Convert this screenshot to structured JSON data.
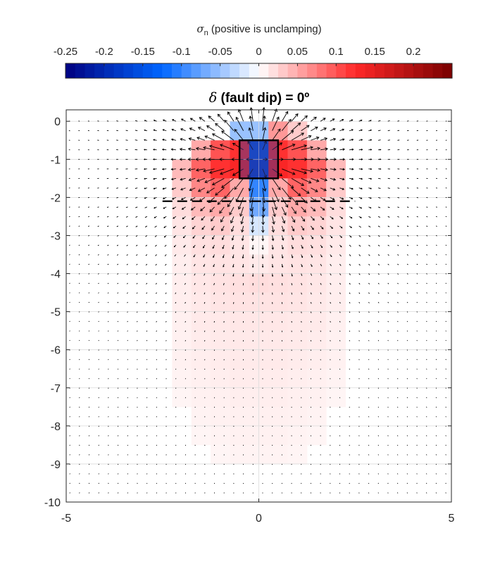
{
  "chart_data": {
    "type": "heatmap",
    "title": {
      "symbol": "δ",
      "text": " (fault dip) = 0º"
    },
    "colorbar": {
      "label_symbol": "σ",
      "label_subscript": "n",
      "label_text": " (positive is unclamping)",
      "ticks": [
        -0.25,
        -0.2,
        -0.15,
        -0.1,
        -0.05,
        0,
        0.05,
        0.1,
        0.15,
        0.2
      ],
      "tick_labels": [
        "-0.25",
        "-0.2",
        "-0.15",
        "-0.1",
        "-0.05",
        "0",
        "0.05",
        "0.1",
        "0.15",
        "0.2"
      ],
      "range": [
        -0.25,
        0.25
      ],
      "colormap": "blue-white-red diverging",
      "position": "top"
    },
    "x_axis": {
      "range": [
        -5,
        5
      ],
      "ticks": [
        -5,
        0,
        5
      ],
      "tick_labels": [
        "-5",
        "0",
        "5"
      ]
    },
    "y_axis": {
      "range": [
        -10,
        0.3
      ],
      "ticks": [
        0,
        -1,
        -2,
        -3,
        -4,
        -5,
        -6,
        -7,
        -8,
        -9,
        -10
      ],
      "tick_labels": [
        "0",
        "-1",
        "-2",
        "-3",
        "-4",
        "-5",
        "-6",
        "-7",
        "-8",
        "-9",
        "-10"
      ]
    },
    "grid": true,
    "source_body": {
      "x": [
        -0.5,
        0.5
      ],
      "y": [
        -1.5,
        -0.5
      ]
    },
    "fault_line": {
      "x": [
        -2.5,
        2.5
      ],
      "y": -2.1,
      "style": "dashed"
    },
    "field_cell_size": [
      0.5,
      0.5
    ],
    "field_rows": [
      {
        "y": -0.25,
        "cells": [
          [
            -0.5,
            -0.05
          ],
          [
            0,
            -0.05
          ],
          [
            0.5,
            0.06
          ],
          [
            1,
            0.03
          ]
        ]
      },
      {
        "y": -0.75,
        "cells": [
          [
            -1.5,
            0.05
          ],
          [
            -1,
            0.1
          ],
          [
            -0.5,
            0.12
          ],
          [
            0,
            -0.15
          ],
          [
            0.5,
            0.12
          ],
          [
            1,
            0.1
          ],
          [
            1.5,
            0.05
          ]
        ]
      },
      {
        "y": -1.25,
        "cells": [
          [
            -2,
            0.04
          ],
          [
            -1.5,
            0.09
          ],
          [
            -1,
            0.12
          ],
          [
            -0.5,
            0.13
          ],
          [
            0,
            -0.17
          ],
          [
            0.5,
            0.13
          ],
          [
            1,
            0.12
          ],
          [
            1.5,
            0.09
          ],
          [
            2,
            0.04
          ]
        ]
      },
      {
        "y": -1.75,
        "cells": [
          [
            -2,
            0.03
          ],
          [
            -1.5,
            0.07
          ],
          [
            -1,
            0.09
          ],
          [
            -0.5,
            0.05
          ],
          [
            0,
            -0.1
          ],
          [
            0.5,
            0.05
          ],
          [
            1,
            0.09
          ],
          [
            1.5,
            0.07
          ],
          [
            2,
            0.03
          ]
        ]
      },
      {
        "y": -2.25,
        "cells": [
          [
            -2,
            0.02
          ],
          [
            -1.5,
            0.04
          ],
          [
            -1,
            0.05
          ],
          [
            -0.5,
            0.03
          ],
          [
            0,
            -0.07
          ],
          [
            0.5,
            0.03
          ],
          [
            1,
            0.05
          ],
          [
            1.5,
            0.04
          ],
          [
            2,
            0.02
          ]
        ]
      },
      {
        "y": -2.75,
        "cells": [
          [
            -2,
            0.015
          ],
          [
            -1.5,
            0.025
          ],
          [
            -1,
            0.03
          ],
          [
            -0.5,
            0.02
          ],
          [
            0,
            -0.02
          ],
          [
            0.5,
            0.02
          ],
          [
            1,
            0.03
          ],
          [
            1.5,
            0.025
          ],
          [
            2,
            0.015
          ]
        ]
      },
      {
        "y": -3.25,
        "cells": [
          [
            -2,
            0.012
          ],
          [
            -1.5,
            0.018
          ],
          [
            -1,
            0.02
          ],
          [
            -0.5,
            0.015
          ],
          [
            0,
            0.005
          ],
          [
            0.5,
            0.015
          ],
          [
            1,
            0.02
          ],
          [
            1.5,
            0.018
          ],
          [
            2,
            0.012
          ]
        ]
      },
      {
        "y": -3.75,
        "cells": [
          [
            -2,
            0.01
          ],
          [
            -1.5,
            0.015
          ],
          [
            -1,
            0.016
          ],
          [
            -0.5,
            0.015
          ],
          [
            0,
            0.012
          ],
          [
            0.5,
            0.015
          ],
          [
            1,
            0.016
          ],
          [
            1.5,
            0.015
          ],
          [
            2,
            0.01
          ]
        ]
      },
      {
        "y": -4.25,
        "cells": [
          [
            -2,
            0.01
          ],
          [
            -1.5,
            0.014
          ],
          [
            -1,
            0.016
          ],
          [
            -0.5,
            0.018
          ],
          [
            0,
            0.02
          ],
          [
            0.5,
            0.018
          ],
          [
            1,
            0.016
          ],
          [
            1.5,
            0.014
          ],
          [
            2,
            0.01
          ]
        ]
      },
      {
        "y": -4.75,
        "cells": [
          [
            -2,
            0.01
          ],
          [
            -1.5,
            0.013
          ],
          [
            -1,
            0.015
          ],
          [
            -0.5,
            0.016
          ],
          [
            0,
            0.016
          ],
          [
            0.5,
            0.016
          ],
          [
            1,
            0.015
          ],
          [
            1.5,
            0.013
          ],
          [
            2,
            0.01
          ]
        ]
      },
      {
        "y": -5.25,
        "cells": [
          [
            -2,
            0.009
          ],
          [
            -1.5,
            0.012
          ],
          [
            -1,
            0.013
          ],
          [
            -0.5,
            0.014
          ],
          [
            0,
            0.014
          ],
          [
            0.5,
            0.014
          ],
          [
            1,
            0.013
          ],
          [
            1.5,
            0.012
          ],
          [
            2,
            0.009
          ]
        ]
      },
      {
        "y": -5.75,
        "cells": [
          [
            -2,
            0.008
          ],
          [
            -1.5,
            0.011
          ],
          [
            -1,
            0.012
          ],
          [
            -0.5,
            0.013
          ],
          [
            0,
            0.013
          ],
          [
            0.5,
            0.013
          ],
          [
            1,
            0.012
          ],
          [
            1.5,
            0.011
          ],
          [
            2,
            0.008
          ]
        ]
      },
      {
        "y": -6.25,
        "cells": [
          [
            -2,
            0.008
          ],
          [
            -1.5,
            0.01
          ],
          [
            -1,
            0.011
          ],
          [
            -0.5,
            0.012
          ],
          [
            0,
            0.012
          ],
          [
            0.5,
            0.012
          ],
          [
            1,
            0.011
          ],
          [
            1.5,
            0.01
          ],
          [
            2,
            0.008
          ]
        ]
      },
      {
        "y": -6.75,
        "cells": [
          [
            -2,
            0.007
          ],
          [
            -1.5,
            0.009
          ],
          [
            -1,
            0.01
          ],
          [
            -0.5,
            0.011
          ],
          [
            0,
            0.011
          ],
          [
            0.5,
            0.011
          ],
          [
            1,
            0.01
          ],
          [
            1.5,
            0.009
          ],
          [
            2,
            0.007
          ]
        ]
      },
      {
        "y": -7.25,
        "cells": [
          [
            -2,
            0.006
          ],
          [
            -1.5,
            0.008
          ],
          [
            -1,
            0.009
          ],
          [
            -0.5,
            0.01
          ],
          [
            0,
            0.01
          ],
          [
            0.5,
            0.01
          ],
          [
            1,
            0.009
          ],
          [
            1.5,
            0.008
          ],
          [
            2,
            0.006
          ]
        ]
      },
      {
        "y": -7.75,
        "cells": [
          [
            -1.5,
            0.007
          ],
          [
            -1,
            0.008
          ],
          [
            -0.5,
            0.009
          ],
          [
            0,
            0.009
          ],
          [
            0.5,
            0.009
          ],
          [
            1,
            0.008
          ],
          [
            1.5,
            0.007
          ]
        ]
      },
      {
        "y": -8.25,
        "cells": [
          [
            -1.5,
            0.006
          ],
          [
            -1,
            0.007
          ],
          [
            -0.5,
            0.008
          ],
          [
            0,
            0.008
          ],
          [
            0.5,
            0.008
          ],
          [
            1,
            0.007
          ],
          [
            1.5,
            0.006
          ]
        ]
      },
      {
        "y": -8.75,
        "cells": [
          [
            -1,
            0.006
          ],
          [
            -0.5,
            0.007
          ],
          [
            0,
            0.007
          ],
          [
            0.5,
            0.007
          ],
          [
            1,
            0.006
          ]
        ]
      }
    ],
    "vector_field": {
      "description": "displacement vectors",
      "grid_spacing": [
        0.25,
        0.25
      ],
      "center": [
        0,
        -1
      ]
    }
  }
}
